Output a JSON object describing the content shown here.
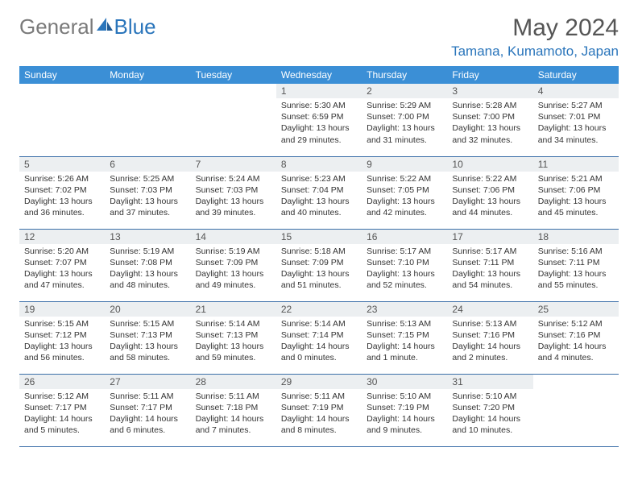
{
  "brand": {
    "text1": "General",
    "text2": "Blue"
  },
  "title": "May 2024",
  "location": "Tamana, Kumamoto, Japan",
  "colors": {
    "header_bg": "#3b8fd6",
    "header_text": "#ffffff",
    "daynum_bg": "#eceff1",
    "border": "#3b6fa8",
    "brand_gray": "#7a7a7a",
    "brand_blue": "#2a75bb"
  },
  "weekdays": [
    "Sunday",
    "Monday",
    "Tuesday",
    "Wednesday",
    "Thursday",
    "Friday",
    "Saturday"
  ],
  "weeks": [
    [
      {
        "empty": true
      },
      {
        "empty": true
      },
      {
        "empty": true
      },
      {
        "day": "1",
        "sunrise": "Sunrise: 5:30 AM",
        "sunset": "Sunset: 6:59 PM",
        "daylight1": "Daylight: 13 hours",
        "daylight2": "and 29 minutes."
      },
      {
        "day": "2",
        "sunrise": "Sunrise: 5:29 AM",
        "sunset": "Sunset: 7:00 PM",
        "daylight1": "Daylight: 13 hours",
        "daylight2": "and 31 minutes."
      },
      {
        "day": "3",
        "sunrise": "Sunrise: 5:28 AM",
        "sunset": "Sunset: 7:00 PM",
        "daylight1": "Daylight: 13 hours",
        "daylight2": "and 32 minutes."
      },
      {
        "day": "4",
        "sunrise": "Sunrise: 5:27 AM",
        "sunset": "Sunset: 7:01 PM",
        "daylight1": "Daylight: 13 hours",
        "daylight2": "and 34 minutes."
      }
    ],
    [
      {
        "day": "5",
        "sunrise": "Sunrise: 5:26 AM",
        "sunset": "Sunset: 7:02 PM",
        "daylight1": "Daylight: 13 hours",
        "daylight2": "and 36 minutes."
      },
      {
        "day": "6",
        "sunrise": "Sunrise: 5:25 AM",
        "sunset": "Sunset: 7:03 PM",
        "daylight1": "Daylight: 13 hours",
        "daylight2": "and 37 minutes."
      },
      {
        "day": "7",
        "sunrise": "Sunrise: 5:24 AM",
        "sunset": "Sunset: 7:03 PM",
        "daylight1": "Daylight: 13 hours",
        "daylight2": "and 39 minutes."
      },
      {
        "day": "8",
        "sunrise": "Sunrise: 5:23 AM",
        "sunset": "Sunset: 7:04 PM",
        "daylight1": "Daylight: 13 hours",
        "daylight2": "and 40 minutes."
      },
      {
        "day": "9",
        "sunrise": "Sunrise: 5:22 AM",
        "sunset": "Sunset: 7:05 PM",
        "daylight1": "Daylight: 13 hours",
        "daylight2": "and 42 minutes."
      },
      {
        "day": "10",
        "sunrise": "Sunrise: 5:22 AM",
        "sunset": "Sunset: 7:06 PM",
        "daylight1": "Daylight: 13 hours",
        "daylight2": "and 44 minutes."
      },
      {
        "day": "11",
        "sunrise": "Sunrise: 5:21 AM",
        "sunset": "Sunset: 7:06 PM",
        "daylight1": "Daylight: 13 hours",
        "daylight2": "and 45 minutes."
      }
    ],
    [
      {
        "day": "12",
        "sunrise": "Sunrise: 5:20 AM",
        "sunset": "Sunset: 7:07 PM",
        "daylight1": "Daylight: 13 hours",
        "daylight2": "and 47 minutes."
      },
      {
        "day": "13",
        "sunrise": "Sunrise: 5:19 AM",
        "sunset": "Sunset: 7:08 PM",
        "daylight1": "Daylight: 13 hours",
        "daylight2": "and 48 minutes."
      },
      {
        "day": "14",
        "sunrise": "Sunrise: 5:19 AM",
        "sunset": "Sunset: 7:09 PM",
        "daylight1": "Daylight: 13 hours",
        "daylight2": "and 49 minutes."
      },
      {
        "day": "15",
        "sunrise": "Sunrise: 5:18 AM",
        "sunset": "Sunset: 7:09 PM",
        "daylight1": "Daylight: 13 hours",
        "daylight2": "and 51 minutes."
      },
      {
        "day": "16",
        "sunrise": "Sunrise: 5:17 AM",
        "sunset": "Sunset: 7:10 PM",
        "daylight1": "Daylight: 13 hours",
        "daylight2": "and 52 minutes."
      },
      {
        "day": "17",
        "sunrise": "Sunrise: 5:17 AM",
        "sunset": "Sunset: 7:11 PM",
        "daylight1": "Daylight: 13 hours",
        "daylight2": "and 54 minutes."
      },
      {
        "day": "18",
        "sunrise": "Sunrise: 5:16 AM",
        "sunset": "Sunset: 7:11 PM",
        "daylight1": "Daylight: 13 hours",
        "daylight2": "and 55 minutes."
      }
    ],
    [
      {
        "day": "19",
        "sunrise": "Sunrise: 5:15 AM",
        "sunset": "Sunset: 7:12 PM",
        "daylight1": "Daylight: 13 hours",
        "daylight2": "and 56 minutes."
      },
      {
        "day": "20",
        "sunrise": "Sunrise: 5:15 AM",
        "sunset": "Sunset: 7:13 PM",
        "daylight1": "Daylight: 13 hours",
        "daylight2": "and 58 minutes."
      },
      {
        "day": "21",
        "sunrise": "Sunrise: 5:14 AM",
        "sunset": "Sunset: 7:13 PM",
        "daylight1": "Daylight: 13 hours",
        "daylight2": "and 59 minutes."
      },
      {
        "day": "22",
        "sunrise": "Sunrise: 5:14 AM",
        "sunset": "Sunset: 7:14 PM",
        "daylight1": "Daylight: 14 hours",
        "daylight2": "and 0 minutes."
      },
      {
        "day": "23",
        "sunrise": "Sunrise: 5:13 AM",
        "sunset": "Sunset: 7:15 PM",
        "daylight1": "Daylight: 14 hours",
        "daylight2": "and 1 minute."
      },
      {
        "day": "24",
        "sunrise": "Sunrise: 5:13 AM",
        "sunset": "Sunset: 7:16 PM",
        "daylight1": "Daylight: 14 hours",
        "daylight2": "and 2 minutes."
      },
      {
        "day": "25",
        "sunrise": "Sunrise: 5:12 AM",
        "sunset": "Sunset: 7:16 PM",
        "daylight1": "Daylight: 14 hours",
        "daylight2": "and 4 minutes."
      }
    ],
    [
      {
        "day": "26",
        "sunrise": "Sunrise: 5:12 AM",
        "sunset": "Sunset: 7:17 PM",
        "daylight1": "Daylight: 14 hours",
        "daylight2": "and 5 minutes."
      },
      {
        "day": "27",
        "sunrise": "Sunrise: 5:11 AM",
        "sunset": "Sunset: 7:17 PM",
        "daylight1": "Daylight: 14 hours",
        "daylight2": "and 6 minutes."
      },
      {
        "day": "28",
        "sunrise": "Sunrise: 5:11 AM",
        "sunset": "Sunset: 7:18 PM",
        "daylight1": "Daylight: 14 hours",
        "daylight2": "and 7 minutes."
      },
      {
        "day": "29",
        "sunrise": "Sunrise: 5:11 AM",
        "sunset": "Sunset: 7:19 PM",
        "daylight1": "Daylight: 14 hours",
        "daylight2": "and 8 minutes."
      },
      {
        "day": "30",
        "sunrise": "Sunrise: 5:10 AM",
        "sunset": "Sunset: 7:19 PM",
        "daylight1": "Daylight: 14 hours",
        "daylight2": "and 9 minutes."
      },
      {
        "day": "31",
        "sunrise": "Sunrise: 5:10 AM",
        "sunset": "Sunset: 7:20 PM",
        "daylight1": "Daylight: 14 hours",
        "daylight2": "and 10 minutes."
      },
      {
        "empty": true
      }
    ]
  ]
}
